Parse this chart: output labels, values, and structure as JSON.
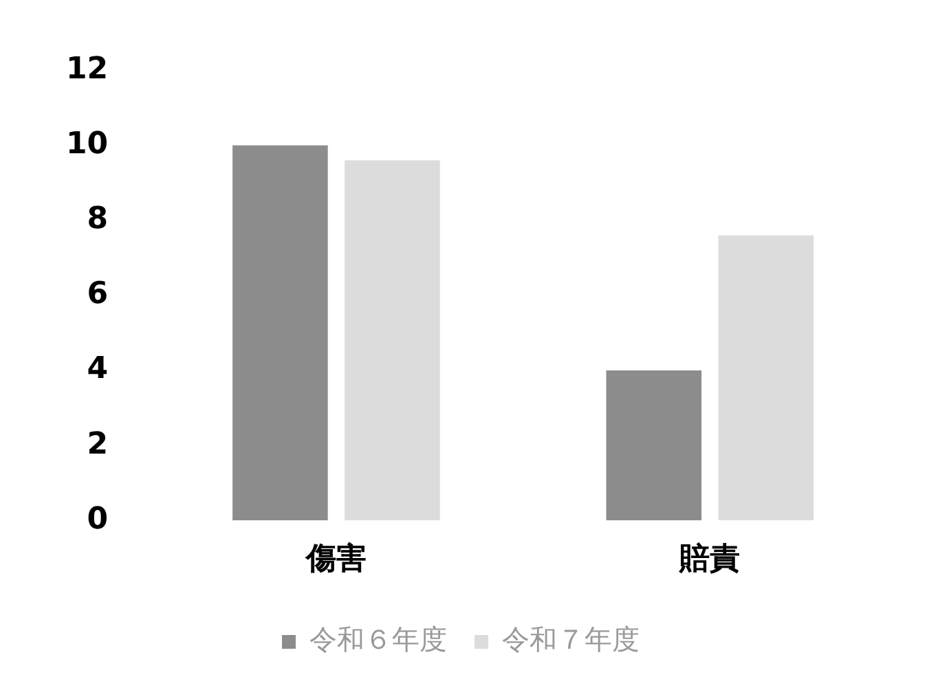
{
  "chart_data": {
    "type": "bar",
    "categories": [
      "傷害",
      "賠責"
    ],
    "series": [
      {
        "name": "令和６年度",
        "color": "#8c8c8c",
        "values": [
          10,
          4
        ]
      },
      {
        "name": "令和７年度",
        "color": "#dcdcdc",
        "values": [
          9.6,
          7.6
        ]
      }
    ],
    "ylim": [
      0,
      12
    ],
    "yticks": [
      0,
      2,
      4,
      6,
      8,
      10,
      12
    ],
    "grid": false,
    "legend": "bottom"
  }
}
